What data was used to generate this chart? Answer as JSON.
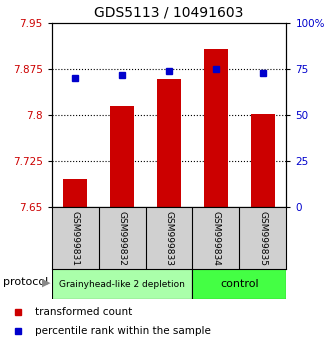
{
  "title": "GDS5113 / 10491603",
  "samples": [
    "GSM999831",
    "GSM999832",
    "GSM999833",
    "GSM999834",
    "GSM999835"
  ],
  "bar_values": [
    7.695,
    7.815,
    7.858,
    7.908,
    7.802
  ],
  "percentile_values": [
    70,
    72,
    74,
    75,
    73
  ],
  "ylim_left": [
    7.65,
    7.95
  ],
  "ylim_right": [
    0,
    100
  ],
  "yticks_left": [
    7.65,
    7.725,
    7.8,
    7.875,
    7.95
  ],
  "ytick_labels_left": [
    "7.65",
    "7.725",
    "7.8",
    "7.875",
    "7.95"
  ],
  "yticks_right": [
    0,
    25,
    50,
    75,
    100
  ],
  "ytick_labels_right": [
    "0",
    "25",
    "50",
    "75",
    "100%"
  ],
  "hlines": [
    7.725,
    7.8,
    7.875
  ],
  "bar_color": "#cc0000",
  "dot_color": "#0000cc",
  "bar_bottom": 7.65,
  "bar_width": 0.5,
  "groups": [
    {
      "label": "Grainyhead-like 2 depletion",
      "indices": [
        0,
        1,
        2
      ],
      "color": "#aaffaa"
    },
    {
      "label": "control",
      "indices": [
        3,
        4
      ],
      "color": "#44ff44"
    }
  ],
  "protocol_label": "protocol",
  "legend_bar_label": "transformed count",
  "legend_dot_label": "percentile rank within the sample",
  "title_fontsize": 10,
  "tick_fontsize": 7.5,
  "sample_box_color": "#d0d0d0",
  "sample_box_edge": "#000000"
}
